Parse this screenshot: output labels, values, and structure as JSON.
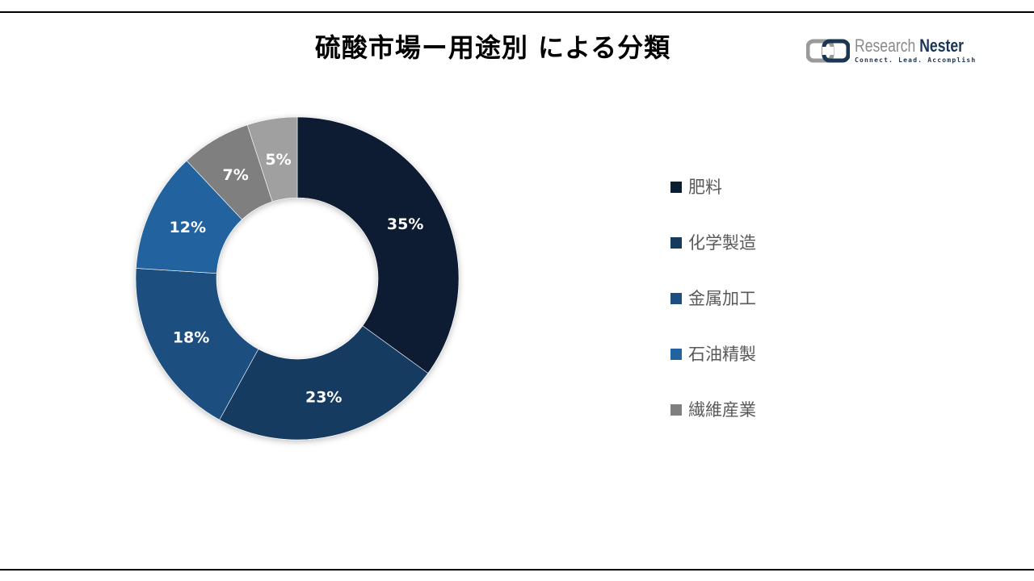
{
  "title": "硫酸市場ー用途別 による分類",
  "logo": {
    "brand_part1": "Research ",
    "brand_part2": "Nester",
    "tagline": "Connect. Lead. Accomplish"
  },
  "legend": [
    {
      "label": "肥料",
      "color": "#0b1f33"
    },
    {
      "label": "化学製造",
      "color": "#143a60"
    },
    {
      "label": "金属加工",
      "color": "#1c4f80"
    },
    {
      "label": "石油精製",
      "color": "#21629f"
    },
    {
      "label": "繊維産業",
      "color": "#7f7f7f"
    }
  ],
  "chart_data": {
    "type": "pie",
    "subtype": "donut",
    "title": "硫酸市場ー用途別 による分類",
    "categories": [
      "肥料",
      "化学製造",
      "金属加工",
      "石油精製",
      "繊維産業",
      ""
    ],
    "values": [
      35,
      23,
      18,
      12,
      7,
      5
    ],
    "labels": [
      "35%",
      "23%",
      "18%",
      "12%",
      "7%",
      "5%"
    ],
    "colors": [
      "#0b1f33",
      "#143a60",
      "#1c4f80",
      "#21629f",
      "#7f7f7f",
      "#a0a0a0"
    ],
    "start_angle_deg": 0,
    "direction": "clockwise",
    "legend_position": "right"
  }
}
